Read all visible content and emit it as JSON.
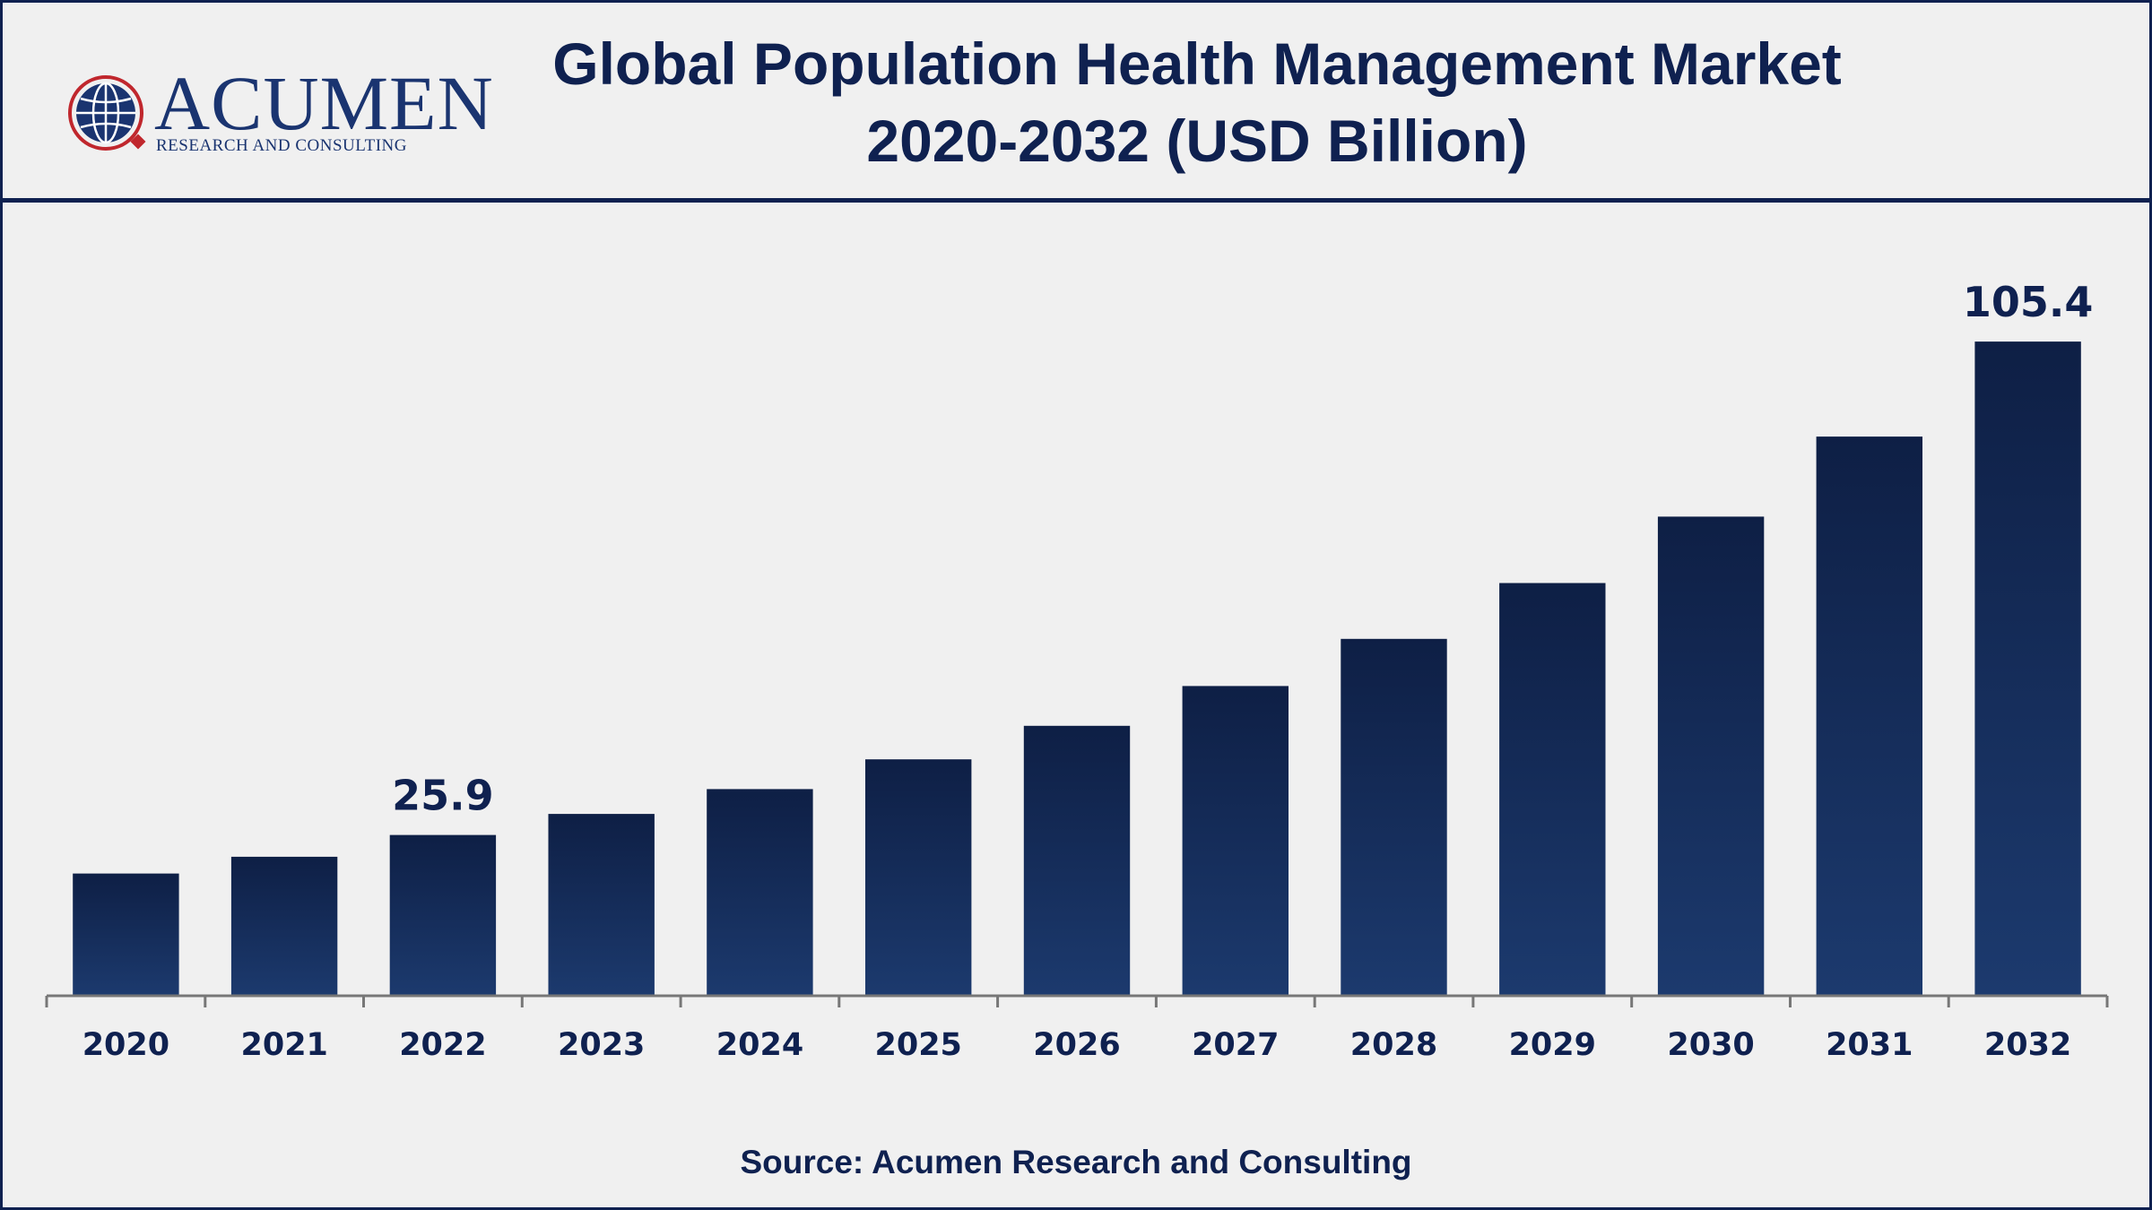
{
  "logo": {
    "name": "ACUMEN",
    "subtitle": "RESEARCH AND CONSULTING"
  },
  "title_line1": "Global Population Health Management Market",
  "title_line2": "2020-2032 (USD Billion)",
  "source": "Source: Acumen Research and Consulting",
  "colors": {
    "bar_top": "#0e1f45",
    "bar_bottom": "#1c3a6e",
    "text": "#0f2150",
    "axis": "#777777"
  },
  "chart_data": {
    "type": "bar",
    "title": "Global Population Health Management Market 2020-2032 (USD Billion)",
    "xlabel": "",
    "ylabel": "",
    "categories": [
      "2020",
      "2021",
      "2022",
      "2023",
      "2024",
      "2025",
      "2026",
      "2027",
      "2028",
      "2029",
      "2030",
      "2031",
      "2032"
    ],
    "values": [
      19.7,
      22.4,
      25.9,
      29.3,
      33.3,
      38.1,
      43.5,
      49.9,
      57.5,
      66.5,
      77.2,
      90.1,
      105.4
    ],
    "data_labels": [
      {
        "category": "2022",
        "text": "25.9"
      },
      {
        "category": "2032",
        "text": "105.4"
      }
    ],
    "ylim": [
      0,
      120
    ],
    "grid": false,
    "legend": "none"
  }
}
